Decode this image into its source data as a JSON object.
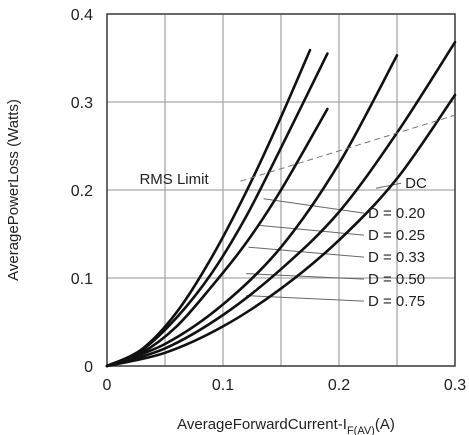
{
  "chart_data": {
    "type": "line",
    "xlabel": "AverageForwardCurrent-I",
    "xlabel_subscript": "F(AV)",
    "xlabel_unit": "(A)",
    "ylabel": "AveragePowerLoss (Watts)",
    "xlim": [
      0,
      0.3
    ],
    "ylim": [
      0,
      0.4
    ],
    "x_ticks": [
      0,
      0.1,
      0.2,
      0.3
    ],
    "x_tick_labels": [
      "0",
      "0.1",
      "0.2",
      "0.3"
    ],
    "y_ticks": [
      0,
      0.1,
      0.2,
      0.3,
      0.4
    ],
    "y_tick_labels": [
      "0",
      "0.1",
      "0.2",
      "0.3",
      "0.4"
    ],
    "grid": true,
    "series": [
      {
        "name": "D = 0.20",
        "x": [
          0,
          0.03,
          0.06,
          0.09,
          0.12,
          0.15,
          0.175
        ],
        "y": [
          0,
          0.019,
          0.061,
          0.123,
          0.198,
          0.283,
          0.359
        ]
      },
      {
        "name": "D = 0.25",
        "x": [
          0,
          0.03,
          0.06,
          0.09,
          0.12,
          0.15,
          0.19
        ],
        "y": [
          0,
          0.018,
          0.055,
          0.105,
          0.17,
          0.248,
          0.355
        ]
      },
      {
        "name": "D = 0.33",
        "x": [
          0,
          0.03,
          0.06,
          0.09,
          0.12,
          0.15,
          0.19
        ],
        "y": [
          0,
          0.015,
          0.045,
          0.09,
          0.14,
          0.2,
          0.292
        ]
      },
      {
        "name": "D = 0.50",
        "x": [
          0,
          0.05,
          0.1,
          0.15,
          0.2,
          0.25
        ],
        "y": [
          0,
          0.025,
          0.07,
          0.135,
          0.23,
          0.353
        ]
      },
      {
        "name": "D = 0.75",
        "x": [
          0,
          0.05,
          0.1,
          0.15,
          0.2,
          0.25,
          0.3
        ],
        "y": [
          0,
          0.02,
          0.058,
          0.11,
          0.175,
          0.265,
          0.368
        ]
      },
      {
        "name": "DC",
        "x": [
          0,
          0.05,
          0.1,
          0.15,
          0.2,
          0.25,
          0.3
        ],
        "y": [
          0,
          0.015,
          0.045,
          0.088,
          0.143,
          0.213,
          0.308
        ]
      }
    ],
    "rms_limit": {
      "label": "RMS Limit",
      "x": [
        0.115,
        0.3
      ],
      "y": [
        0.21,
        0.285
      ]
    },
    "annotations": [
      {
        "text": "DC",
        "x": 0.257,
        "y": 0.202,
        "target_x": 0.232,
        "target_y": 0.202
      },
      {
        "text": "D = 0.20",
        "x": 0.225,
        "y": 0.168,
        "target_x": 0.135,
        "target_y": 0.19
      },
      {
        "text": "D = 0.25",
        "x": 0.225,
        "y": 0.143,
        "target_x": 0.13,
        "target_y": 0.16
      },
      {
        "text": "D = 0.33",
        "x": 0.225,
        "y": 0.118,
        "target_x": 0.122,
        "target_y": 0.135
      },
      {
        "text": "D = 0.50",
        "x": 0.225,
        "y": 0.093,
        "target_x": 0.12,
        "target_y": 0.105
      },
      {
        "text": "D = 0.75",
        "x": 0.225,
        "y": 0.068,
        "target_x": 0.12,
        "target_y": 0.08
      }
    ]
  }
}
